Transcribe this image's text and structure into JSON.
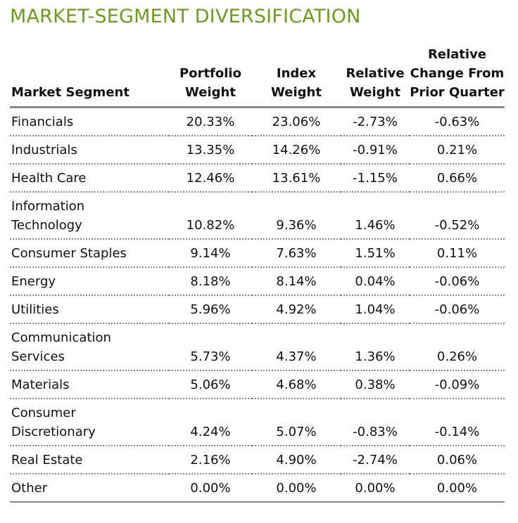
{
  "title": "MARKET-SEGMENT DIVERSIFICATION",
  "table": {
    "columns": [
      "Market Segment",
      "Portfolio Weight",
      "Index Weight",
      "Relative Weight",
      "Relative Change From Prior Quarter"
    ],
    "rows": [
      [
        "Financials",
        "20.33%",
        "23.06%",
        "-2.73%",
        "-0.63%"
      ],
      [
        "Industrials",
        "13.35%",
        "14.26%",
        "-0.91%",
        "0.21%"
      ],
      [
        "Health Care",
        "12.46%",
        "13.61%",
        "-1.15%",
        "0.66%"
      ],
      [
        "Information Technology",
        "10.82%",
        "9.36%",
        "1.46%",
        "-0.52%"
      ],
      [
        "Consumer Staples",
        "9.14%",
        "7.63%",
        "1.51%",
        "0.11%"
      ],
      [
        "Energy",
        "8.18%",
        "8.14%",
        "0.04%",
        "-0.06%"
      ],
      [
        "Utilities",
        "5.96%",
        "4.92%",
        "1.04%",
        "-0.06%"
      ],
      [
        "Communication Services",
        "5.73%",
        "4.37%",
        "1.36%",
        "0.26%"
      ],
      [
        "Materials",
        "5.06%",
        "4.68%",
        "0.38%",
        "-0.09%"
      ],
      [
        "Consumer Discretionary",
        "4.24%",
        "5.07%",
        "-0.83%",
        "-0.14%"
      ],
      [
        "Real Estate",
        "2.16%",
        "4.90%",
        "-2.74%",
        "0.06%"
      ],
      [
        "Other",
        "0.00%",
        "0.00%",
        "0.00%",
        "0.00%"
      ]
    ]
  }
}
